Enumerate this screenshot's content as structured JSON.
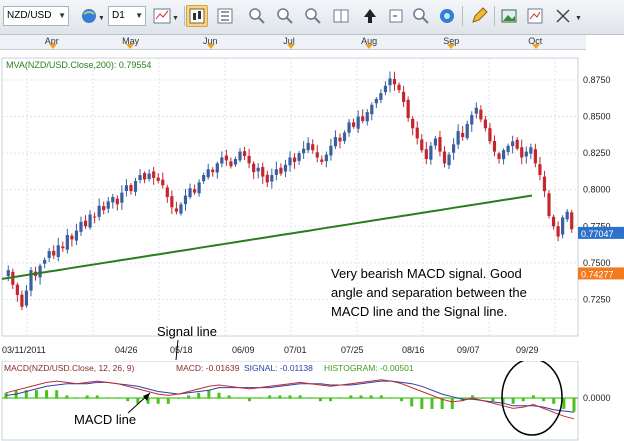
{
  "toolbar": {
    "symbol": "NZD/USD",
    "timeframe": "D1",
    "tools": [
      "globe-icon",
      "line-chart-icon",
      "bar-chart-icon",
      "candle-chart-icon",
      "zoom-in-icon",
      "zoom-out-icon",
      "indicators-icon",
      "crosshair-icon",
      "refresh-icon",
      "pencil-icon",
      "image-icon",
      "export-icon",
      "settings-icon"
    ]
  },
  "months": [
    {
      "label": "Apr",
      "pos": 0.09
    },
    {
      "label": "May",
      "pos": 0.222
    },
    {
      "label": "Jun",
      "pos": 0.36
    },
    {
      "label": "Jul",
      "pos": 0.497
    },
    {
      "label": "Aug",
      "pos": 0.63
    },
    {
      "label": "Sep",
      "pos": 0.77
    },
    {
      "label": "Oct",
      "pos": 0.915
    }
  ],
  "chart_data": {
    "type": "candlestick",
    "symbol": "NZD/USD",
    "moving_average_label": "MVA(NZD/USD.Close,200): 0.79554",
    "ylim": [
      0.7,
      0.89
    ],
    "yticks": [
      "0.7250",
      "0.7500",
      "0.7750",
      "0.8000",
      "0.8250",
      "0.8500",
      "0.8750"
    ],
    "x_tick_labels": [
      "03/11/2011",
      "04/26",
      "05/18",
      "06/09",
      "07/01",
      "07/25",
      "08/16",
      "09/07",
      "09/29"
    ],
    "price_tag_blue": "0.77047",
    "price_tag_orange": "0.74277",
    "price_tag_blue_value": 0.77047,
    "price_tag_orange_value": 0.74277,
    "closes": [
      0.745,
      0.735,
      0.728,
      0.72,
      0.731,
      0.745,
      0.741,
      0.748,
      0.752,
      0.758,
      0.755,
      0.762,
      0.76,
      0.769,
      0.766,
      0.772,
      0.778,
      0.775,
      0.783,
      0.781,
      0.789,
      0.786,
      0.792,
      0.795,
      0.79,
      0.798,
      0.803,
      0.799,
      0.806,
      0.81,
      0.807,
      0.811,
      0.808,
      0.806,
      0.803,
      0.795,
      0.788,
      0.785,
      0.79,
      0.796,
      0.801,
      0.798,
      0.805,
      0.81,
      0.814,
      0.812,
      0.818,
      0.822,
      0.82,
      0.816,
      0.821,
      0.826,
      0.823,
      0.818,
      0.812,
      0.815,
      0.809,
      0.805,
      0.81,
      0.814,
      0.811,
      0.817,
      0.822,
      0.819,
      0.825,
      0.828,
      0.832,
      0.827,
      0.822,
      0.819,
      0.824,
      0.83,
      0.836,
      0.833,
      0.839,
      0.846,
      0.843,
      0.85,
      0.847,
      0.853,
      0.858,
      0.862,
      0.866,
      0.871,
      0.876,
      0.872,
      0.868,
      0.86,
      0.849,
      0.842,
      0.835,
      0.827,
      0.821,
      0.83,
      0.835,
      0.826,
      0.818,
      0.824,
      0.831,
      0.84,
      0.836,
      0.845,
      0.851,
      0.856,
      0.848,
      0.842,
      0.833,
      0.826,
      0.821,
      0.827,
      0.83,
      0.833,
      0.828,
      0.822,
      0.826,
      0.829,
      0.818,
      0.81,
      0.799,
      0.782,
      0.775,
      0.768,
      0.781,
      0.785,
      0.773
    ],
    "mva200": [
      0.739,
      0.74,
      0.741,
      0.742,
      0.743,
      0.744,
      0.745,
      0.746,
      0.747,
      0.748,
      0.749,
      0.75,
      0.751,
      0.752,
      0.753,
      0.754,
      0.755,
      0.756,
      0.757,
      0.758,
      0.759,
      0.76,
      0.761,
      0.762,
      0.763,
      0.764,
      0.765,
      0.766,
      0.767,
      0.768,
      0.769,
      0.77,
      0.771,
      0.772,
      0.773,
      0.774,
      0.775,
      0.776,
      0.777,
      0.778,
      0.779,
      0.78,
      0.781,
      0.782,
      0.783,
      0.784,
      0.785,
      0.786,
      0.787,
      0.788,
      0.789,
      0.79,
      0.791,
      0.792,
      0.793,
      0.794,
      0.795,
      0.796
    ],
    "annotation_main": [
      "Very bearish MACD signal.  Good",
      "angle and separation between the",
      "MACD line and the Signal line."
    ],
    "macd_label": "MACD(NZD/USD.Close, 12, 26, 9)",
    "macd_value_text": "MACD: -0.01639",
    "signal_value_text": "SIGNAL: -0.01138",
    "histogram_value_text": "HISTOGRAM: -0.00501",
    "macd_ytick": "0.0000",
    "macd_series": [
      0.004,
      0.006,
      0.008,
      0.01,
      0.012,
      0.013,
      0.012,
      0.011,
      0.012,
      0.013,
      0.012,
      0.011,
      0.009,
      0.007,
      0.005,
      0.003,
      0.002,
      0.003,
      0.005,
      0.007,
      0.009,
      0.01,
      0.009,
      0.008,
      0.007,
      0.008,
      0.009,
      0.01,
      0.011,
      0.012,
      0.011,
      0.01,
      0.009,
      0.01,
      0.011,
      0.012,
      0.013,
      0.014,
      0.013,
      0.011,
      0.008,
      0.005,
      0.002,
      -0.001,
      -0.003,
      -0.002,
      0.0,
      -0.002,
      -0.004,
      -0.006,
      -0.008,
      -0.007,
      -0.005,
      -0.008,
      -0.011,
      -0.014,
      -0.016
    ],
    "signal_series": [
      0.002,
      0.003,
      0.005,
      0.007,
      0.009,
      0.01,
      0.011,
      0.011,
      0.011,
      0.012,
      0.012,
      0.011,
      0.01,
      0.009,
      0.007,
      0.005,
      0.004,
      0.003,
      0.004,
      0.005,
      0.006,
      0.008,
      0.008,
      0.008,
      0.008,
      0.008,
      0.008,
      0.009,
      0.01,
      0.011,
      0.011,
      0.011,
      0.01,
      0.01,
      0.01,
      0.011,
      0.012,
      0.013,
      0.013,
      0.012,
      0.011,
      0.009,
      0.006,
      0.003,
      0.001,
      -0.001,
      -0.001,
      -0.002,
      -0.003,
      -0.004,
      -0.006,
      -0.006,
      -0.006,
      -0.007,
      -0.009,
      -0.01,
      -0.011
    ],
    "annotation_signal_line": "Signal line",
    "annotation_macd_line": "MACD line"
  },
  "colors": {
    "up": "#3a5fa0",
    "down": "#c4262e",
    "mva": "#2a7d1e",
    "macd": "#c42a30",
    "signal": "#2d3ea8",
    "hist": "#49c11e",
    "price_tag_blue": "#2b72c8",
    "price_tag_orange": "#f47a1e"
  }
}
